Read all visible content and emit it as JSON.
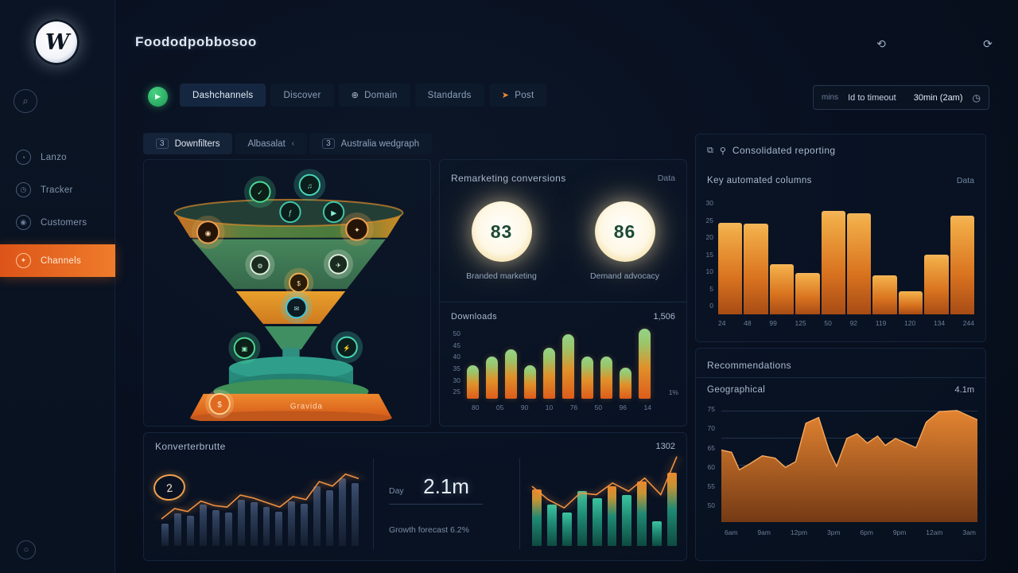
{
  "app": {
    "title": "Foododpobbosoo"
  },
  "colors": {
    "accent_orange": "#ee7a2c",
    "accent_green": "#3fae6e",
    "accent_teal": "#2fae9a",
    "badge_glow": "#ffe9c2"
  },
  "sidebar": {
    "logo": "W",
    "items": [
      {
        "label": "Lanzo"
      },
      {
        "label": "Tracker"
      },
      {
        "label": "Customers"
      },
      {
        "label": "Channels"
      }
    ]
  },
  "tabbar": {
    "tabs": [
      {
        "label": "Dashchannels"
      },
      {
        "label": "Discover"
      },
      {
        "label": "Domain"
      },
      {
        "label": "Standards"
      },
      {
        "label": "Post"
      }
    ]
  },
  "time_control": {
    "prefix": "mins",
    "range": "Id to timeout",
    "value": "30min (2am)"
  },
  "subtabs": [
    {
      "count": "3",
      "label": "Downfilters"
    },
    {
      "label": "Albasalat",
      "chevron": "‹"
    },
    {
      "count": "3",
      "label": "Australia wedgraph"
    }
  ],
  "funnel": {
    "base_label": "Gravida"
  },
  "conversion_panel": {
    "title": "Remarketing conversions",
    "link": "Data",
    "stats": [
      {
        "value": "83",
        "label": "Branded marketing"
      },
      {
        "value": "86",
        "label": "Demand advocacy"
      }
    ],
    "chart": {
      "title": "Downloads",
      "total": "1,506",
      "right_label": "1%",
      "y_ticks": [
        "50",
        "45",
        "40",
        "35",
        "30",
        "25"
      ],
      "x_ticks": [
        "80",
        "05",
        "90",
        "10",
        "76",
        "50",
        "96",
        "14"
      ],
      "values": [
        48,
        60,
        71,
        48,
        73,
        92,
        60,
        60,
        44,
        100
      ]
    }
  },
  "reporting_panel": {
    "header": "Consolidated reporting",
    "subtitle": "Key automated columns",
    "link": "Data",
    "y_ticks": [
      "30",
      "25",
      "20",
      "15",
      "10",
      "5",
      "0"
    ],
    "x_ticks": [
      "24",
      "48",
      "99",
      "125",
      "50",
      "92",
      "119",
      "120",
      "134",
      "244"
    ],
    "values": [
      80,
      79,
      44,
      36,
      90,
      88,
      34,
      20,
      52,
      86
    ]
  },
  "recommendations_panel": {
    "header": "Recommendations",
    "subtitle": "Geographical",
    "value": "4.1m",
    "y_ticks": [
      "75",
      "70",
      "65",
      "60",
      "55",
      "50"
    ],
    "x_ticks": [
      "6am",
      "9am",
      "12pm",
      "3pm",
      "6pm",
      "9pm",
      "12am",
      "3am"
    ],
    "area_points": [
      [
        0,
        62
      ],
      [
        4,
        60
      ],
      [
        7,
        45
      ],
      [
        11,
        50
      ],
      [
        16,
        57
      ],
      [
        21,
        55
      ],
      [
        25,
        47
      ],
      [
        29,
        52
      ],
      [
        33,
        85
      ],
      [
        38,
        90
      ],
      [
        42,
        62
      ],
      [
        45,
        48
      ],
      [
        49,
        72
      ],
      [
        53,
        76
      ],
      [
        57,
        68
      ],
      [
        61,
        74
      ],
      [
        64,
        66
      ],
      [
        68,
        72
      ],
      [
        72,
        68
      ],
      [
        76,
        64
      ],
      [
        80,
        86
      ],
      [
        85,
        95
      ],
      [
        92,
        96
      ],
      [
        100,
        88
      ]
    ]
  },
  "conversions_panel": {
    "header": "Konverterbrutte",
    "value": "1302",
    "badge": "2",
    "bars": [
      30,
      44,
      40,
      55,
      48,
      45,
      62,
      58,
      52,
      46,
      60,
      56,
      80,
      74,
      90,
      84
    ],
    "line": [
      36,
      50,
      46,
      60,
      54,
      52,
      68,
      64,
      58,
      52,
      66,
      62,
      86,
      80,
      96,
      90
    ],
    "stat": {
      "label": "Day",
      "value": "2.1m",
      "sub": "Growth forecast 6.2%"
    },
    "teal_bars": [
      68,
      50,
      40,
      66,
      58,
      72,
      62,
      78,
      30,
      88
    ],
    "teal_line": [
      72,
      56,
      46,
      64,
      62,
      76,
      66,
      82,
      62,
      108
    ]
  },
  "chart_data": [
    {
      "type": "bar",
      "title": "Downloads",
      "total": "1,506",
      "categories": [
        "80",
        "05",
        "90",
        "10",
        "76",
        "50",
        "96",
        "14"
      ],
      "values": [
        48,
        60,
        71,
        48,
        73,
        92,
        60,
        60,
        44,
        100
      ],
      "ylim": [
        25,
        50
      ]
    },
    {
      "type": "bar",
      "title": "Key automated columns",
      "categories": [
        "24",
        "48",
        "99",
        "125",
        "50",
        "92",
        "119",
        "120",
        "134",
        "244"
      ],
      "values": [
        80,
        79,
        44,
        36,
        90,
        88,
        34,
        20,
        52,
        86
      ],
      "ylim": [
        0,
        30
      ]
    },
    {
      "type": "area",
      "title": "Geographical",
      "categories": [
        "6am",
        "9am",
        "12pm",
        "3pm",
        "6pm",
        "9pm",
        "12am",
        "3am"
      ],
      "values": [
        62,
        45,
        57,
        47,
        85,
        48,
        76,
        74,
        68,
        86,
        96,
        88
      ],
      "ylim": [
        50,
        75
      ]
    },
    {
      "type": "bar",
      "title": "Konverterbrutte",
      "values": [
        30,
        44,
        40,
        55,
        48,
        45,
        62,
        58,
        52,
        46,
        60,
        56,
        80,
        74,
        90,
        84
      ],
      "overlay_line": [
        36,
        50,
        46,
        60,
        54,
        52,
        68,
        64,
        58,
        52,
        66,
        62,
        86,
        80,
        96,
        90
      ]
    },
    {
      "type": "bar",
      "title": "Konverterbrutte teal",
      "values": [
        68,
        50,
        40,
        66,
        58,
        72,
        62,
        78,
        30,
        88
      ],
      "overlay_line": [
        72,
        56,
        46,
        64,
        62,
        76,
        66,
        82,
        62,
        108
      ]
    }
  ]
}
